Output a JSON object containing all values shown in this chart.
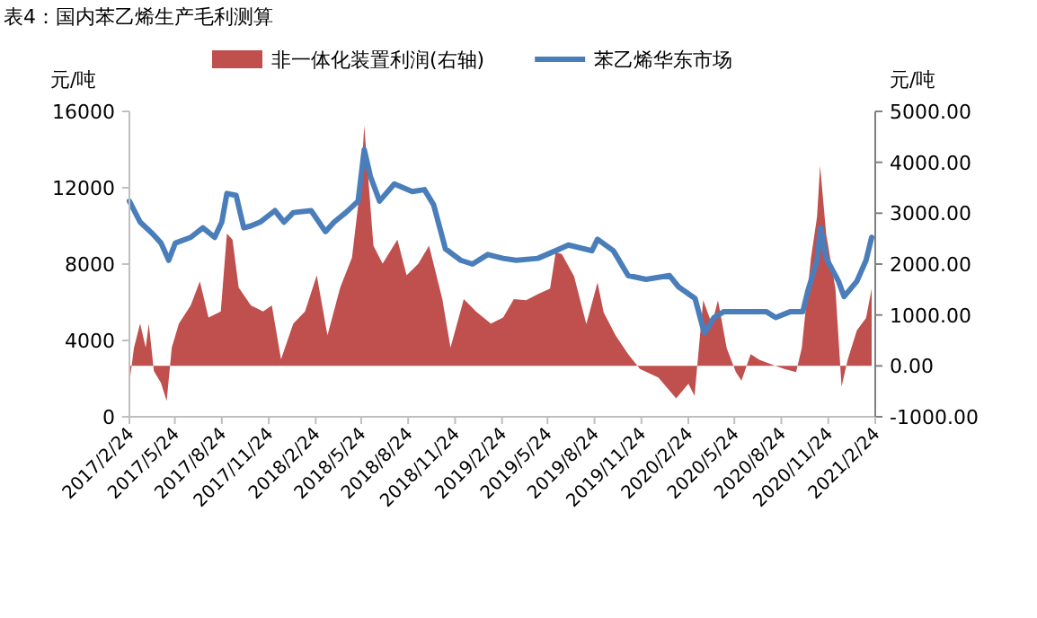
{
  "chart_data": {
    "type": "line",
    "title": "表4：国内苯乙烯生产毛利测算",
    "ylabel": "元/吨",
    "y2label": "元/吨",
    "legend": "top",
    "grid": false,
    "xlim": [
      "2017-02-24",
      "2021-02-24"
    ],
    "xticks": [
      {
        "value": "2017-02-24",
        "label": "2017/2/24"
      },
      {
        "value": "2017-05-24",
        "label": "2017/5/24"
      },
      {
        "value": "2017-08-24",
        "label": "2017/8/24"
      },
      {
        "value": "2017-11-24",
        "label": "2017/11/24"
      },
      {
        "value": "2018-02-24",
        "label": "2018/2/24"
      },
      {
        "value": "2018-05-24",
        "label": "2018/5/24"
      },
      {
        "value": "2018-08-24",
        "label": "2018/8/24"
      },
      {
        "value": "2018-11-24",
        "label": "2018/11/24"
      },
      {
        "value": "2019-02-24",
        "label": "2019/2/24"
      },
      {
        "value": "2019-05-24",
        "label": "2019/5/24"
      },
      {
        "value": "2019-08-24",
        "label": "2019/8/24"
      },
      {
        "value": "2019-11-24",
        "label": "2019/11/24"
      },
      {
        "value": "2020-02-24",
        "label": "2020/2/24"
      },
      {
        "value": "2020-05-24",
        "label": "2020/5/24"
      },
      {
        "value": "2020-08-24",
        "label": "2020/8/24"
      },
      {
        "value": "2020-11-24",
        "label": "2020/11/24"
      },
      {
        "value": "2021-02-24",
        "label": "2021/2/24"
      }
    ],
    "ylim": [
      0,
      16000
    ],
    "yticks": [
      0,
      4000,
      8000,
      12000,
      16000
    ],
    "y2lim": [
      -1000,
      5000
    ],
    "y2ticks": [
      {
        "value": -1000,
        "label": "-1000.00"
      },
      {
        "value": 0,
        "label": "0.00"
      },
      {
        "value": 1000,
        "label": "1000.00"
      },
      {
        "value": 2000,
        "label": "2000.00"
      },
      {
        "value": 3000,
        "label": "3000.00"
      },
      {
        "value": 4000,
        "label": "4000.00"
      },
      {
        "value": 5000,
        "label": "5000.00"
      }
    ],
    "series": [
      {
        "name": "非一体化装置利润(右轴)",
        "type": "area",
        "axis": "y2",
        "color": "#c0504d",
        "x": [
          "2017-02-24",
          "2017-03-05",
          "2017-03-17",
          "2017-03-28",
          "2017-04-03",
          "2017-04-13",
          "2017-04-27",
          "2017-05-08",
          "2017-05-18",
          "2017-06-01",
          "2017-06-24",
          "2017-07-12",
          "2017-07-29",
          "2017-08-22",
          "2017-09-03",
          "2017-09-14",
          "2017-09-26",
          "2017-10-20",
          "2017-11-13",
          "2017-11-30",
          "2017-12-18",
          "2018-01-11",
          "2018-02-03",
          "2018-02-26",
          "2018-03-19",
          "2018-04-13",
          "2018-05-06",
          "2018-05-24",
          "2018-05-30",
          "2018-06-17",
          "2018-07-05",
          "2018-08-03",
          "2018-08-21",
          "2018-09-13",
          "2018-10-04",
          "2018-10-30",
          "2018-11-15",
          "2018-12-11",
          "2019-01-04",
          "2019-02-02",
          "2019-02-26",
          "2019-03-19",
          "2019-04-12",
          "2019-05-05",
          "2019-05-29",
          "2019-06-09",
          "2019-06-21",
          "2019-07-15",
          "2019-08-08",
          "2019-08-30",
          "2019-09-11",
          "2019-10-05",
          "2019-10-29",
          "2019-11-21",
          "2019-12-27",
          "2020-01-31",
          "2020-02-24",
          "2020-03-07",
          "2020-03-24",
          "2020-04-10",
          "2020-04-22",
          "2020-05-09",
          "2020-05-27",
          "2020-06-07",
          "2020-06-25",
          "2020-07-12",
          "2020-08-12",
          "2020-08-30",
          "2020-09-22",
          "2020-10-03",
          "2020-10-21",
          "2020-11-02",
          "2020-11-08",
          "2020-11-20",
          "2020-12-08",
          "2020-12-20",
          "2021-01-01",
          "2021-01-19",
          "2021-02-06",
          "2021-02-17"
        ],
        "values": [
          -340,
          360,
          830,
          360,
          830,
          -100,
          -340,
          -690,
          360,
          830,
          1190,
          1660,
          950,
          1070,
          2600,
          2480,
          1540,
          1190,
          1070,
          1190,
          130,
          830,
          1070,
          1780,
          600,
          1540,
          2130,
          3660,
          4720,
          2360,
          2010,
          2480,
          1780,
          2010,
          2360,
          1310,
          360,
          1310,
          1070,
          830,
          950,
          1310,
          1290,
          1410,
          1520,
          2230,
          2200,
          1760,
          820,
          1640,
          1050,
          590,
          230,
          -60,
          -230,
          -640,
          -350,
          -590,
          1290,
          820,
          1290,
          350,
          -120,
          -290,
          230,
          120,
          0,
          -60,
          -120,
          350,
          2110,
          2930,
          3930,
          2580,
          1520,
          -410,
          120,
          700,
          940,
          1520
        ]
      },
      {
        "name": "苯乙烯华东市场",
        "color": "#4a7ebb",
        "x": [
          "2017-02-24",
          "2017-03-17",
          "2017-04-10",
          "2017-04-27",
          "2017-05-12",
          "2017-05-25",
          "2017-06-24",
          "2017-07-18",
          "2017-08-10",
          "2017-08-24",
          "2017-09-03",
          "2017-09-21",
          "2017-10-06",
          "2017-10-20",
          "2017-11-07",
          "2017-12-06",
          "2017-12-24",
          "2018-01-11",
          "2018-02-15",
          "2018-03-15",
          "2018-04-01",
          "2018-04-24",
          "2018-05-18",
          "2018-05-30",
          "2018-06-11",
          "2018-06-29",
          "2018-07-28",
          "2018-09-01",
          "2018-09-25",
          "2018-10-13",
          "2018-11-05",
          "2018-12-05",
          "2018-12-28",
          "2019-01-27",
          "2019-02-26",
          "2019-03-24",
          "2019-05-05",
          "2019-06-09",
          "2019-07-04",
          "2019-08-19",
          "2019-08-30",
          "2019-09-30",
          "2019-10-29",
          "2019-12-03",
          "2020-01-18",
          "2020-02-05",
          "2020-03-08",
          "2020-03-24",
          "2020-03-27",
          "2020-04-14",
          "2020-05-03",
          "2020-06-07",
          "2020-07-26",
          "2020-08-13",
          "2020-09-10",
          "2020-10-05",
          "2020-10-15",
          "2020-11-02",
          "2020-11-09",
          "2020-11-20",
          "2020-12-14",
          "2020-12-25",
          "2021-01-19",
          "2021-02-06",
          "2021-02-17"
        ],
        "values": [
          11300,
          10200,
          9600,
          9100,
          8200,
          9100,
          9400,
          9900,
          9400,
          10200,
          11700,
          11600,
          9900,
          10000,
          10200,
          10800,
          10200,
          10700,
          10800,
          9700,
          10200,
          10700,
          11300,
          14000,
          12600,
          11300,
          12200,
          11800,
          11900,
          11100,
          8800,
          8200,
          8000,
          8500,
          8300,
          8200,
          8300,
          8700,
          9000,
          8700,
          9300,
          8700,
          7400,
          7200,
          7400,
          6800,
          6200,
          4600,
          4400,
          5200,
          5500,
          5500,
          5500,
          5200,
          5500,
          5500,
          6600,
          8200,
          9900,
          8300,
          7100,
          6300,
          7100,
          8200,
          9400
        ]
      }
    ]
  }
}
